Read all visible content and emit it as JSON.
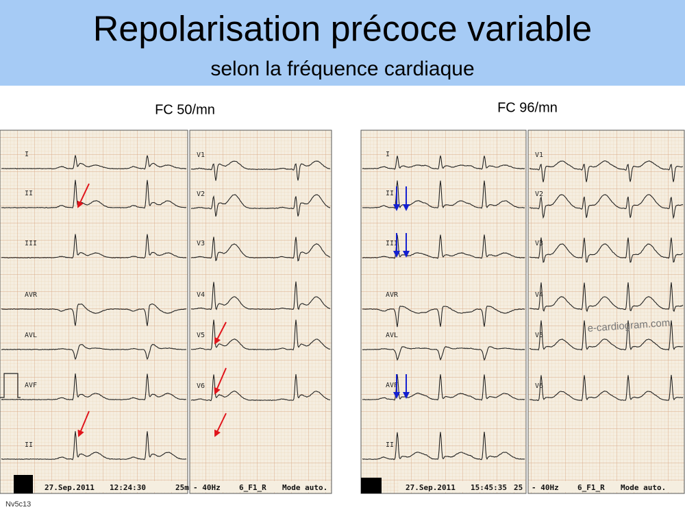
{
  "header": {
    "title": "Repolarisation précoce variable",
    "subtitle": "selon la fréquence cardiaque"
  },
  "panels": [
    {
      "label": "FC 50/mn",
      "left_leads": [
        "I",
        "II",
        "III",
        "AVR",
        "AVL",
        "AVF",
        "II"
      ],
      "right_leads": [
        "V1",
        "V2",
        "V3",
        "V4",
        "V5",
        "V6"
      ],
      "footer": {
        "date": "27.Sep.2011",
        "time": "12:24:30",
        "speed": "25m",
        "filter": "- 40Hz",
        "program": "6_F1_R",
        "mode": "Mode auto."
      }
    },
    {
      "label": "FC 96/mn",
      "left_leads": [
        "I",
        "II",
        "III",
        "AVR",
        "AVL",
        "AVF",
        "II"
      ],
      "right_leads": [
        "V1",
        "V2",
        "V3",
        "V4",
        "V5",
        "V6"
      ],
      "footer": {
        "date": "27.Sep.2011",
        "time": "15:45:35",
        "speed": "25",
        "filter": "- 40Hz",
        "program": "6_F1_R",
        "mode": "Mode auto."
      },
      "watermark": "e-cardiogram.com"
    }
  ],
  "footer": {
    "slide_id": "Nv5c13"
  }
}
